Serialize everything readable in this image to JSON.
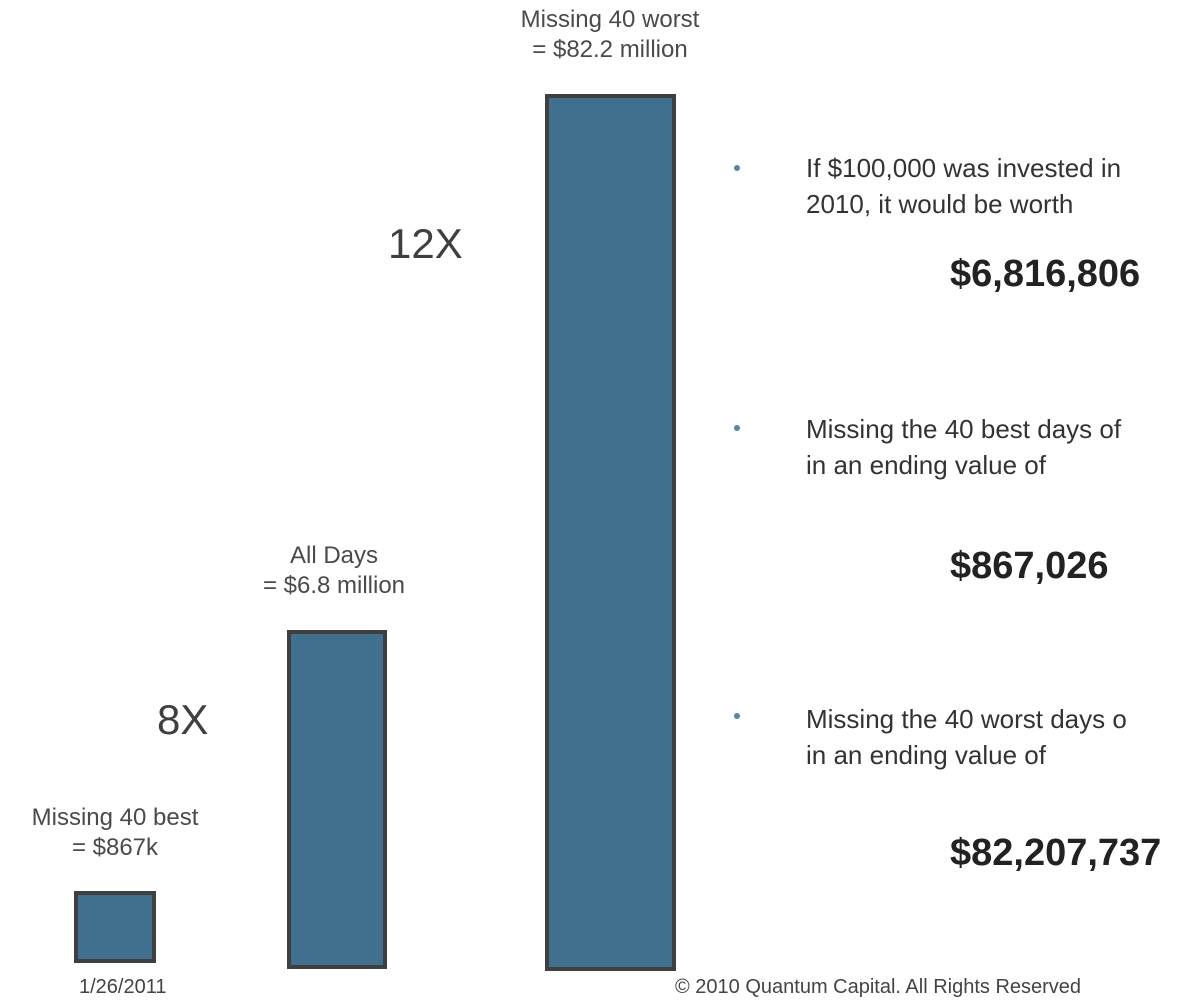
{
  "bars": [
    {
      "label": "Missing 40 best",
      "value_label": "= $867k"
    },
    {
      "label": "All Days",
      "value_label": "= $6.8 million"
    },
    {
      "label": "Missing 40 worst",
      "value_label": "= $82.2 million"
    }
  ],
  "multipliers": [
    "8X",
    "12X"
  ],
  "bullets": [
    {
      "lines": [
        "If $100,000 was invested in",
        "2010, it would be worth"
      ],
      "amount": "$6,816,806"
    },
    {
      "lines": [
        "Missing the 40 best days of",
        "in an ending value of"
      ],
      "amount": "$867,026"
    },
    {
      "lines": [
        "Missing the 40 worst days o",
        "in an ending value of"
      ],
      "amount": "$82,207,737"
    }
  ],
  "footer": {
    "date": "1/26/2011",
    "copyright": "© 2010 Quantum Capital. All Rights Reserved"
  }
}
